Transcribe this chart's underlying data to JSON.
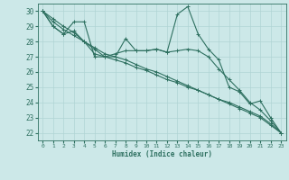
{
  "xlabel": "Humidex (Indice chaleur)",
  "background_color": "#cce8e8",
  "grid_color": "#b0d4d4",
  "line_color": "#2e7060",
  "xlim": [
    -0.5,
    23.5
  ],
  "ylim": [
    21.5,
    30.5
  ],
  "xticks": [
    0,
    1,
    2,
    3,
    4,
    5,
    6,
    7,
    8,
    9,
    10,
    11,
    12,
    13,
    14,
    15,
    16,
    17,
    18,
    19,
    20,
    21,
    22,
    23
  ],
  "yticks": [
    22,
    23,
    24,
    25,
    26,
    27,
    28,
    29,
    30
  ],
  "series": [
    [
      30.0,
      29.0,
      28.5,
      29.3,
      29.3,
      27.0,
      27.0,
      27.0,
      28.2,
      27.4,
      27.4,
      27.5,
      27.3,
      29.8,
      30.3,
      28.5,
      27.5,
      26.8,
      25.0,
      24.7,
      23.9,
      24.1,
      23.0,
      22.0
    ],
    [
      30.0,
      29.0,
      28.5,
      28.7,
      28.0,
      27.2,
      27.0,
      27.2,
      27.4,
      27.4,
      27.4,
      27.5,
      27.3,
      27.4,
      27.5,
      27.4,
      27.0,
      26.2,
      25.5,
      24.8,
      24.0,
      23.5,
      22.8,
      22.0
    ],
    [
      30.0,
      29.3,
      28.8,
      28.4,
      28.0,
      27.5,
      27.0,
      26.8,
      26.6,
      26.3,
      26.1,
      25.8,
      25.5,
      25.3,
      25.0,
      24.8,
      24.5,
      24.2,
      24.0,
      23.7,
      23.4,
      23.1,
      22.6,
      22.0
    ],
    [
      30.0,
      29.5,
      29.0,
      28.6,
      28.0,
      27.6,
      27.2,
      27.0,
      26.8,
      26.5,
      26.2,
      26.0,
      25.7,
      25.4,
      25.1,
      24.8,
      24.5,
      24.2,
      23.9,
      23.6,
      23.3,
      23.0,
      22.5,
      22.0
    ]
  ]
}
